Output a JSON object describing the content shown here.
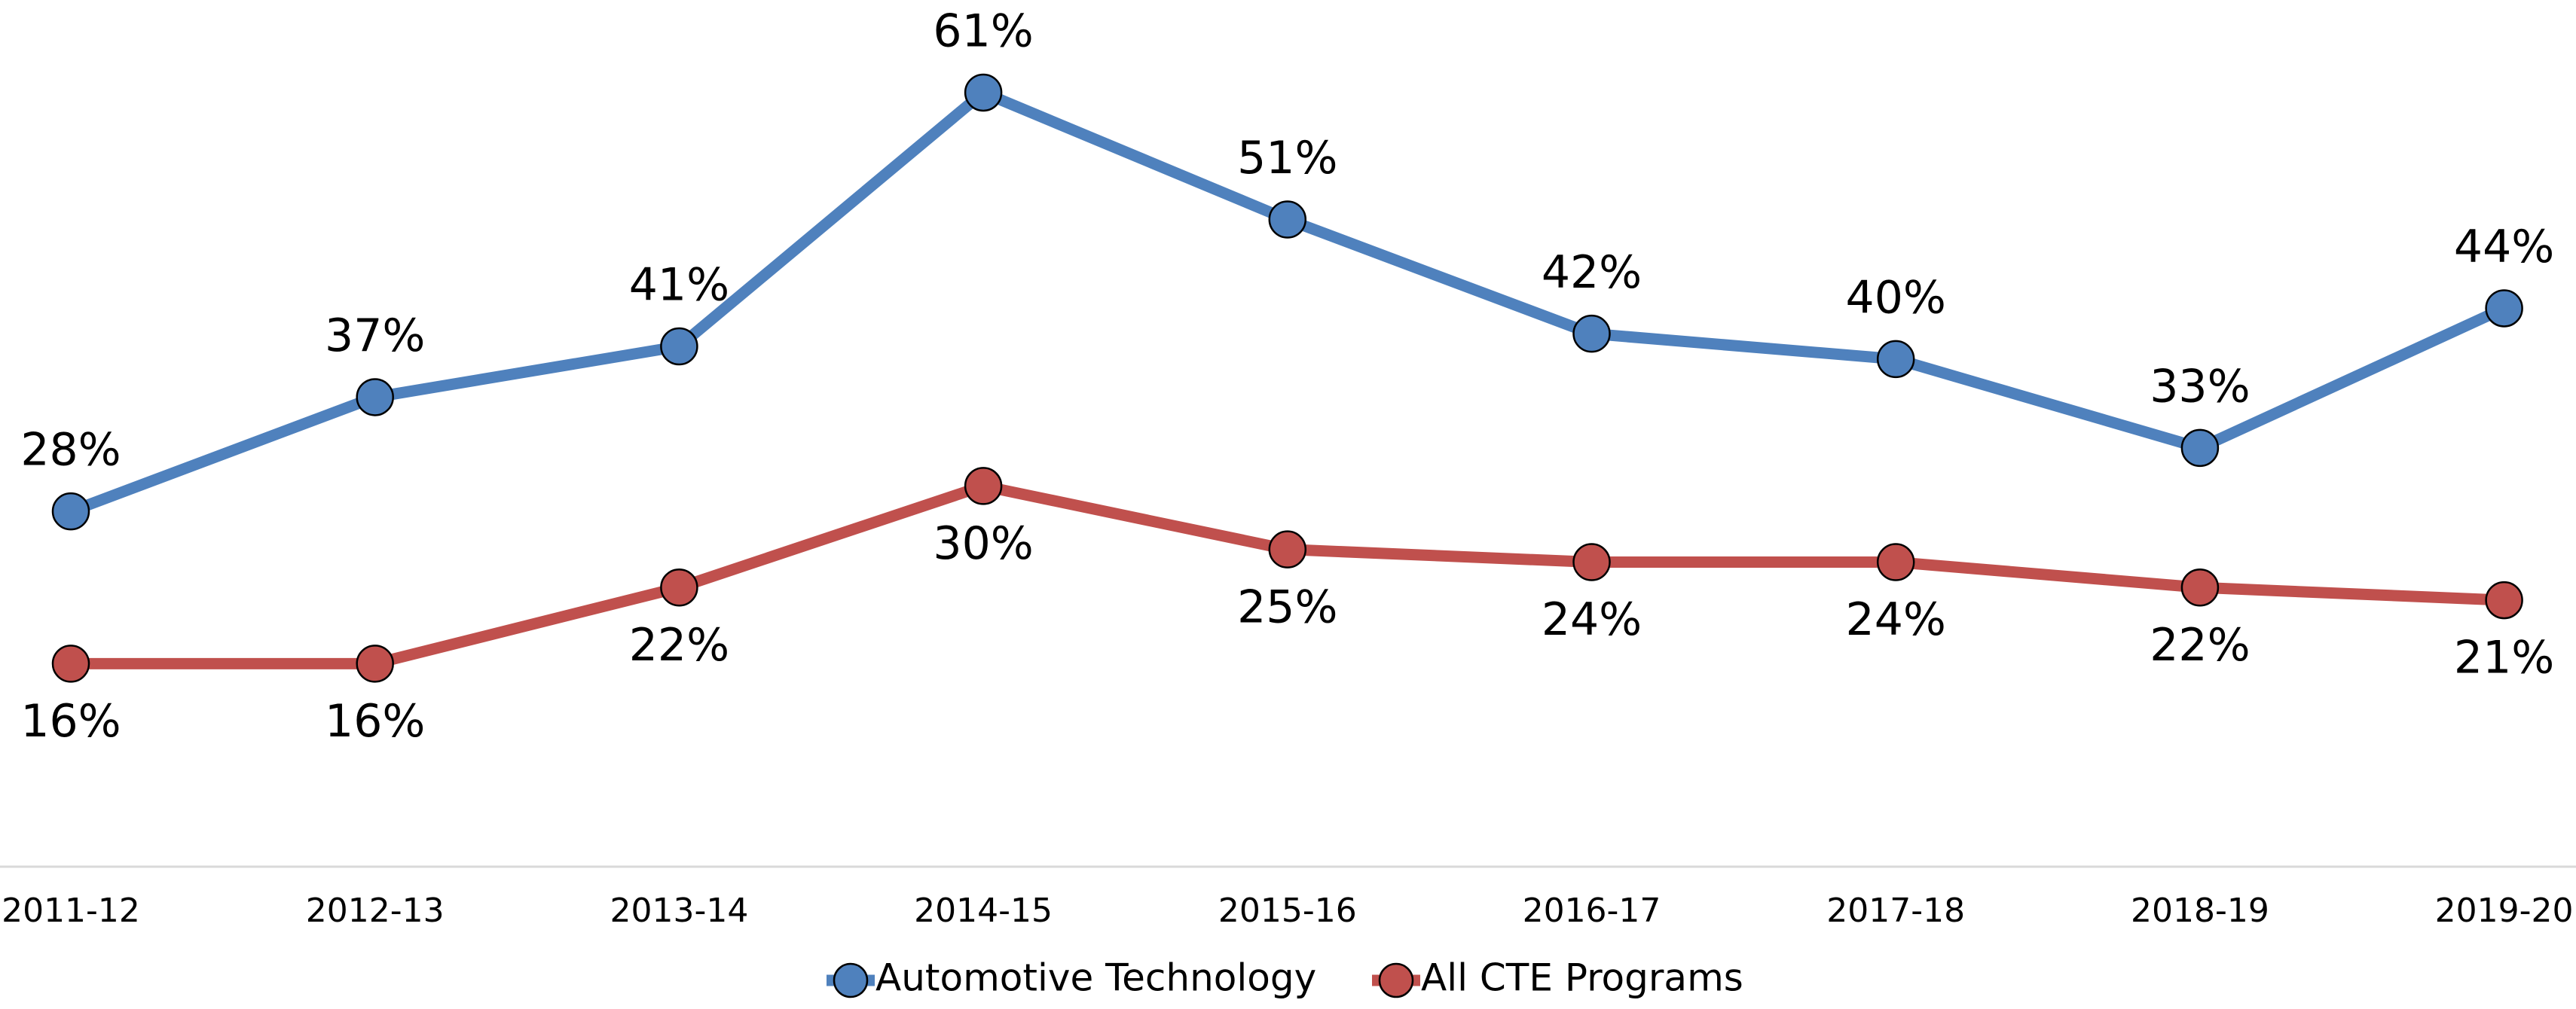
{
  "chart_data": {
    "type": "line",
    "categories": [
      "2011-12",
      "2012-13",
      "2013-14",
      "2014-15",
      "2015-16",
      "2016-17",
      "2017-18",
      "2018-19",
      "2019-20"
    ],
    "ylim": [
      0,
      68
    ],
    "series": [
      {
        "name": "Automotive Technology",
        "color": "#4f81bd",
        "values": [
          28,
          37,
          41,
          61,
          51,
          42,
          40,
          33,
          44
        ],
        "value_labels": [
          "28%",
          "37%",
          "41%",
          "61%",
          "51%",
          "42%",
          "40%",
          "33%",
          "44%"
        ]
      },
      {
        "name": "All CTE Programs",
        "color": "#c0504d",
        "values": [
          16,
          16,
          22,
          30,
          25,
          24,
          24,
          22,
          21
        ],
        "value_labels": [
          "16%",
          "16%",
          "22%",
          "30%",
          "25%",
          "24%",
          "24%",
          "22%",
          "21%"
        ]
      }
    ]
  }
}
